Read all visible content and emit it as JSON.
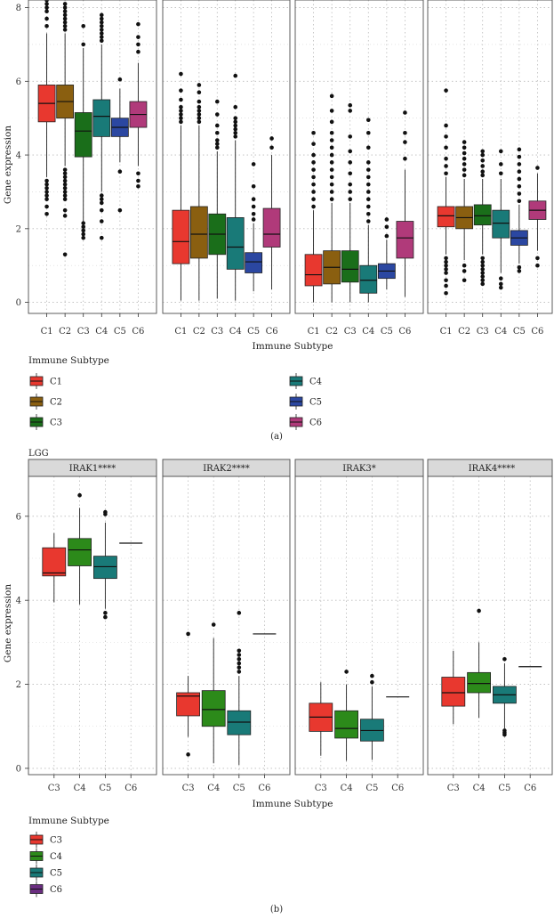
{
  "chart_data": [
    {
      "id": "a",
      "type": "boxplot",
      "caption": "(a)",
      "title": "",
      "ylabel": "Gene expression",
      "xlabel": "Immune Subtype",
      "ylim": [
        -0.3,
        8.4
      ],
      "yticks": [
        0,
        2,
        4,
        6,
        8
      ],
      "categories": [
        "C1",
        "C2",
        "C3",
        "C4",
        "C5",
        "C6"
      ],
      "colors": {
        "C1": "#e8382f",
        "C2": "#8a5f10",
        "C3": "#1a6e1a",
        "C4": "#197a78",
        "C5": "#2b47a1",
        "C6": "#b03a7a"
      },
      "legend": {
        "title": "Immune Subtype",
        "position": "bottom",
        "entries": [
          "C1",
          "C2",
          "C3",
          "C4",
          "C5",
          "C6"
        ]
      },
      "facets": [
        {
          "label": "",
          "boxes": [
            {
              "cat": "C1",
              "q1": 4.9,
              "median": 5.4,
              "q3": 5.9,
              "wlo": 3.4,
              "whi": 7.3,
              "outliers": [
                3.3,
                3.2,
                3.1,
                3.0,
                2.9,
                2.8,
                2.6,
                2.4,
                7.5,
                7.7,
                7.9,
                8.0,
                8.1,
                8.2
              ]
            },
            {
              "cat": "C2",
              "q1": 5.0,
              "median": 5.45,
              "q3": 5.9,
              "wlo": 3.7,
              "whi": 7.3,
              "outliers": [
                3.6,
                3.5,
                3.4,
                3.3,
                3.2,
                3.1,
                3.0,
                2.9,
                2.8,
                2.5,
                2.35,
                1.3,
                7.4,
                7.5,
                7.6,
                7.7,
                7.8,
                7.9,
                8.0,
                8.1,
                8.25
              ]
            },
            {
              "cat": "C3",
              "q1": 3.95,
              "median": 4.65,
              "q3": 5.15,
              "wlo": 2.2,
              "whi": 6.9,
              "outliers": [
                2.15,
                2.05,
                1.95,
                1.85,
                1.75,
                7.0,
                7.5,
                8.25
              ]
            },
            {
              "cat": "C4",
              "q1": 4.5,
              "median": 5.05,
              "q3": 5.5,
              "wlo": 3.0,
              "whi": 7.0,
              "outliers": [
                2.9,
                2.8,
                2.7,
                2.5,
                2.2,
                1.75,
                7.1,
                7.2,
                7.3,
                7.4,
                7.5,
                7.6,
                7.7,
                7.8
              ]
            },
            {
              "cat": "C5",
              "q1": 4.5,
              "median": 4.75,
              "q3": 5.0,
              "wlo": 3.8,
              "whi": 5.8,
              "outliers": [
                6.05,
                3.55,
                2.5
              ]
            },
            {
              "cat": "C6",
              "q1": 4.75,
              "median": 5.1,
              "q3": 5.45,
              "wlo": 3.7,
              "whi": 6.5,
              "outliers": [
                6.8,
                7.0,
                7.2,
                7.55,
                3.5,
                3.3,
                3.15
              ]
            }
          ]
        },
        {
          "label": "",
          "boxes": [
            {
              "cat": "C1",
              "q1": 1.05,
              "median": 1.65,
              "q3": 2.5,
              "wlo": 0.05,
              "whi": 4.8,
              "outliers": [
                4.9,
                5.0,
                5.1,
                5.2,
                5.3,
                5.5,
                5.75,
                6.2
              ]
            },
            {
              "cat": "C2",
              "q1": 1.2,
              "median": 1.85,
              "q3": 2.6,
              "wlo": 0.05,
              "whi": 4.8,
              "outliers": [
                4.9,
                5.0,
                5.1,
                5.2,
                5.3,
                5.45,
                5.7,
                5.9
              ]
            },
            {
              "cat": "C3",
              "q1": 1.3,
              "median": 1.85,
              "q3": 2.4,
              "wlo": 0.1,
              "whi": 4.1,
              "outliers": [
                4.2,
                4.3,
                4.4,
                4.6,
                4.8,
                5.1,
                5.45
              ]
            },
            {
              "cat": "C4",
              "q1": 0.9,
              "median": 1.5,
              "q3": 2.3,
              "wlo": 0.05,
              "whi": 4.4,
              "outliers": [
                4.5,
                4.6,
                4.7,
                4.8,
                4.9,
                5.0,
                5.3,
                6.15
              ]
            },
            {
              "cat": "C5",
              "q1": 0.8,
              "median": 1.1,
              "q3": 1.35,
              "wlo": 0.3,
              "whi": 2.15,
              "outliers": [
                2.25,
                2.4,
                2.6,
                2.8,
                3.15,
                3.75
              ]
            },
            {
              "cat": "C6",
              "q1": 1.5,
              "median": 1.85,
              "q3": 2.55,
              "wlo": 0.35,
              "whi": 4.0,
              "outliers": [
                4.2,
                4.45
              ]
            }
          ]
        },
        {
          "label": "",
          "boxes": [
            {
              "cat": "C1",
              "q1": 0.45,
              "median": 0.75,
              "q3": 1.3,
              "wlo": 0.0,
              "whi": 2.5,
              "outliers": [
                2.6,
                2.8,
                3.0,
                3.2,
                3.4,
                3.6,
                3.8,
                4.0,
                4.3,
                4.6
              ]
            },
            {
              "cat": "C2",
              "q1": 0.5,
              "median": 0.95,
              "q3": 1.4,
              "wlo": 0.0,
              "whi": 2.7,
              "outliers": [
                2.8,
                3.0,
                3.2,
                3.4,
                3.6,
                3.8,
                4.0,
                4.2,
                4.4,
                4.6,
                4.9,
                5.2,
                5.6
              ]
            },
            {
              "cat": "C3",
              "q1": 0.55,
              "median": 0.9,
              "q3": 1.4,
              "wlo": 0.0,
              "whi": 2.7,
              "outliers": [
                2.8,
                3.0,
                3.2,
                3.5,
                3.8,
                4.1,
                4.5,
                5.2,
                5.35
              ]
            },
            {
              "cat": "C4",
              "q1": 0.25,
              "median": 0.6,
              "q3": 1.0,
              "wlo": 0.0,
              "whi": 2.1,
              "outliers": [
                2.2,
                2.4,
                2.6,
                2.8,
                3.0,
                3.2,
                3.4,
                3.6,
                3.8,
                4.2,
                4.6,
                4.95
              ]
            },
            {
              "cat": "C5",
              "q1": 0.65,
              "median": 0.85,
              "q3": 1.05,
              "wlo": 0.35,
              "whi": 1.7,
              "outliers": [
                1.8,
                2.05,
                2.25
              ]
            },
            {
              "cat": "C6",
              "q1": 1.2,
              "median": 1.75,
              "q3": 2.2,
              "wlo": 0.15,
              "whi": 3.6,
              "outliers": [
                3.9,
                4.35,
                4.6,
                5.15
              ]
            }
          ]
        },
        {
          "label": "",
          "boxes": [
            {
              "cat": "C1",
              "q1": 2.05,
              "median": 2.35,
              "q3": 2.6,
              "wlo": 1.3,
              "whi": 3.4,
              "outliers": [
                1.2,
                1.1,
                1.0,
                0.9,
                0.8,
                0.6,
                0.45,
                0.25,
                3.5,
                3.7,
                3.9,
                4.2,
                4.5,
                4.8,
                5.75
              ]
            },
            {
              "cat": "C2",
              "q1": 2.0,
              "median": 2.3,
              "q3": 2.6,
              "wlo": 1.15,
              "whi": 3.35,
              "outliers": [
                1.0,
                0.85,
                0.6,
                3.45,
                3.6,
                3.75,
                3.9,
                4.05,
                4.2,
                4.35
              ]
            },
            {
              "cat": "C3",
              "q1": 2.1,
              "median": 2.35,
              "q3": 2.65,
              "wlo": 1.3,
              "whi": 3.35,
              "outliers": [
                1.2,
                1.1,
                1.0,
                0.9,
                0.8,
                0.7,
                0.6,
                0.5,
                3.45,
                3.55,
                3.7,
                3.85,
                4.0,
                4.1
              ]
            },
            {
              "cat": "C4",
              "q1": 1.75,
              "median": 2.15,
              "q3": 2.5,
              "wlo": 0.8,
              "whi": 3.35,
              "outliers": [
                0.65,
                0.5,
                0.4,
                3.5,
                3.75,
                4.1
              ]
            },
            {
              "cat": "C5",
              "q1": 1.55,
              "median": 1.75,
              "q3": 1.95,
              "wlo": 1.05,
              "whi": 2.65,
              "outliers": [
                0.95,
                0.85,
                2.75,
                2.95,
                3.15,
                3.35,
                3.55,
                3.75,
                3.95,
                4.15
              ]
            },
            {
              "cat": "C6",
              "q1": 2.25,
              "median": 2.5,
              "q3": 2.75,
              "wlo": 1.4,
              "whi": 3.5,
              "outliers": [
                1.2,
                1.0,
                3.65
              ]
            }
          ]
        }
      ]
    },
    {
      "id": "b",
      "type": "boxplot",
      "caption": "(b)",
      "title": "LGG",
      "ylabel": "Gene expression",
      "xlabel": "Immune Subtype",
      "ylim": [
        -0.15,
        6.95
      ],
      "yticks": [
        0,
        2,
        4,
        6
      ],
      "categories": [
        "C3",
        "C4",
        "C5",
        "C6"
      ],
      "colors": {
        "C3": "#e8382f",
        "C4": "#2c8a1a",
        "C5": "#197a78",
        "C6": "#6a2d80"
      },
      "legend": {
        "title": "Immune Subtype",
        "position": "bottom",
        "entries": [
          "C3",
          "C4",
          "C5",
          "C6"
        ]
      },
      "facets": [
        {
          "label": "IRAK1****",
          "boxes": [
            {
              "cat": "C3",
              "q1": 4.58,
              "median": 4.65,
              "q3": 5.25,
              "wlo": 3.95,
              "whi": 5.6,
              "outliers": []
            },
            {
              "cat": "C4",
              "q1": 4.82,
              "median": 5.2,
              "q3": 5.47,
              "wlo": 3.9,
              "whi": 6.2,
              "outliers": [
                6.5
              ]
            },
            {
              "cat": "C5",
              "q1": 4.52,
              "median": 4.8,
              "q3": 5.05,
              "wlo": 3.8,
              "whi": 5.85,
              "outliers": [
                6.05,
                6.1,
                3.7,
                3.6
              ]
            },
            {
              "cat": "C6",
              "q1": 5.36,
              "median": 5.36,
              "q3": 5.36,
              "wlo": 5.36,
              "whi": 5.36,
              "outliers": []
            }
          ]
        },
        {
          "label": "IRAK2****",
          "boxes": [
            {
              "cat": "C3",
              "q1": 1.25,
              "median": 1.72,
              "q3": 1.8,
              "wlo": 0.75,
              "whi": 2.2,
              "outliers": [
                3.2,
                0.33
              ]
            },
            {
              "cat": "C4",
              "q1": 1.0,
              "median": 1.4,
              "q3": 1.85,
              "wlo": 0.12,
              "whi": 3.1,
              "outliers": [
                3.42
              ]
            },
            {
              "cat": "C5",
              "q1": 0.8,
              "median": 1.1,
              "q3": 1.37,
              "wlo": 0.08,
              "whi": 2.2,
              "outliers": [
                2.3,
                2.4,
                2.5,
                2.6,
                2.7,
                2.8,
                3.7
              ]
            },
            {
              "cat": "C6",
              "q1": 3.2,
              "median": 3.2,
              "q3": 3.2,
              "wlo": 3.2,
              "whi": 3.2,
              "outliers": []
            }
          ]
        },
        {
          "label": "IRAK3*",
          "boxes": [
            {
              "cat": "C3",
              "q1": 0.88,
              "median": 1.22,
              "q3": 1.55,
              "wlo": 0.3,
              "whi": 2.05,
              "outliers": []
            },
            {
              "cat": "C4",
              "q1": 0.72,
              "median": 0.95,
              "q3": 1.37,
              "wlo": 0.18,
              "whi": 2.0,
              "outliers": [
                2.3
              ]
            },
            {
              "cat": "C5",
              "q1": 0.65,
              "median": 0.9,
              "q3": 1.17,
              "wlo": 0.2,
              "whi": 1.95,
              "outliers": [
                2.05,
                2.2
              ]
            },
            {
              "cat": "C6",
              "q1": 1.7,
              "median": 1.7,
              "q3": 1.7,
              "wlo": 1.7,
              "whi": 1.7,
              "outliers": []
            }
          ]
        },
        {
          "label": "IRAK4****",
          "boxes": [
            {
              "cat": "C3",
              "q1": 1.48,
              "median": 1.8,
              "q3": 2.17,
              "wlo": 1.05,
              "whi": 2.8,
              "outliers": []
            },
            {
              "cat": "C4",
              "q1": 1.8,
              "median": 2.02,
              "q3": 2.28,
              "wlo": 1.2,
              "whi": 3.0,
              "outliers": [
                3.75
              ]
            },
            {
              "cat": "C5",
              "q1": 1.55,
              "median": 1.75,
              "q3": 1.95,
              "wlo": 0.95,
              "whi": 2.5,
              "outliers": [
                2.6,
                0.9,
                0.85,
                0.8
              ]
            },
            {
              "cat": "C6",
              "q1": 2.42,
              "median": 2.42,
              "q3": 2.42,
              "wlo": 2.42,
              "whi": 2.42,
              "outliers": []
            }
          ]
        }
      ]
    }
  ]
}
